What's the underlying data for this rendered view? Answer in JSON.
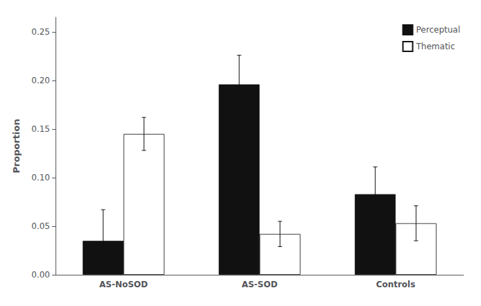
{
  "chart_data": {
    "type": "bar",
    "categories": [
      "AS-NoSOD",
      "AS-SOD",
      "Controls"
    ],
    "series": [
      {
        "name": "Perceptual",
        "color": "#111111",
        "values": [
          0.035,
          0.196,
          0.083
        ],
        "errors": [
          0.032,
          0.03,
          0.028
        ]
      },
      {
        "name": "Thematic",
        "color": "#ffffff",
        "values": [
          0.145,
          0.042,
          0.053
        ],
        "errors": [
          0.017,
          0.013,
          0.018
        ]
      }
    ],
    "ylabel": "Proportion",
    "ylim": [
      0,
      0.265
    ],
    "yticks": [
      {
        "value": 0.0,
        "label": "0.00"
      },
      {
        "value": 0.05,
        "label": "0.05"
      },
      {
        "value": 0.1,
        "label": "0.10"
      },
      {
        "value": 0.15,
        "label": "0.15"
      },
      {
        "value": 0.2,
        "label": "0.20"
      },
      {
        "value": 0.25,
        "label": "0.25"
      }
    ],
    "grid": false,
    "legend": "upper right"
  }
}
